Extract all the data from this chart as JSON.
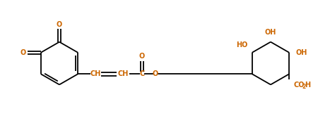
{
  "bg_color": "#ffffff",
  "line_color": "#000000",
  "label_color_orange": "#cc6600",
  "fig_width": 4.67,
  "fig_height": 1.85,
  "dpi": 100,
  "font_size": 7.0,
  "font_size_sub": 5.5,
  "line_width": 1.3,
  "xlim": [
    0,
    9.5
  ],
  "ylim": [
    0,
    3.6
  ]
}
